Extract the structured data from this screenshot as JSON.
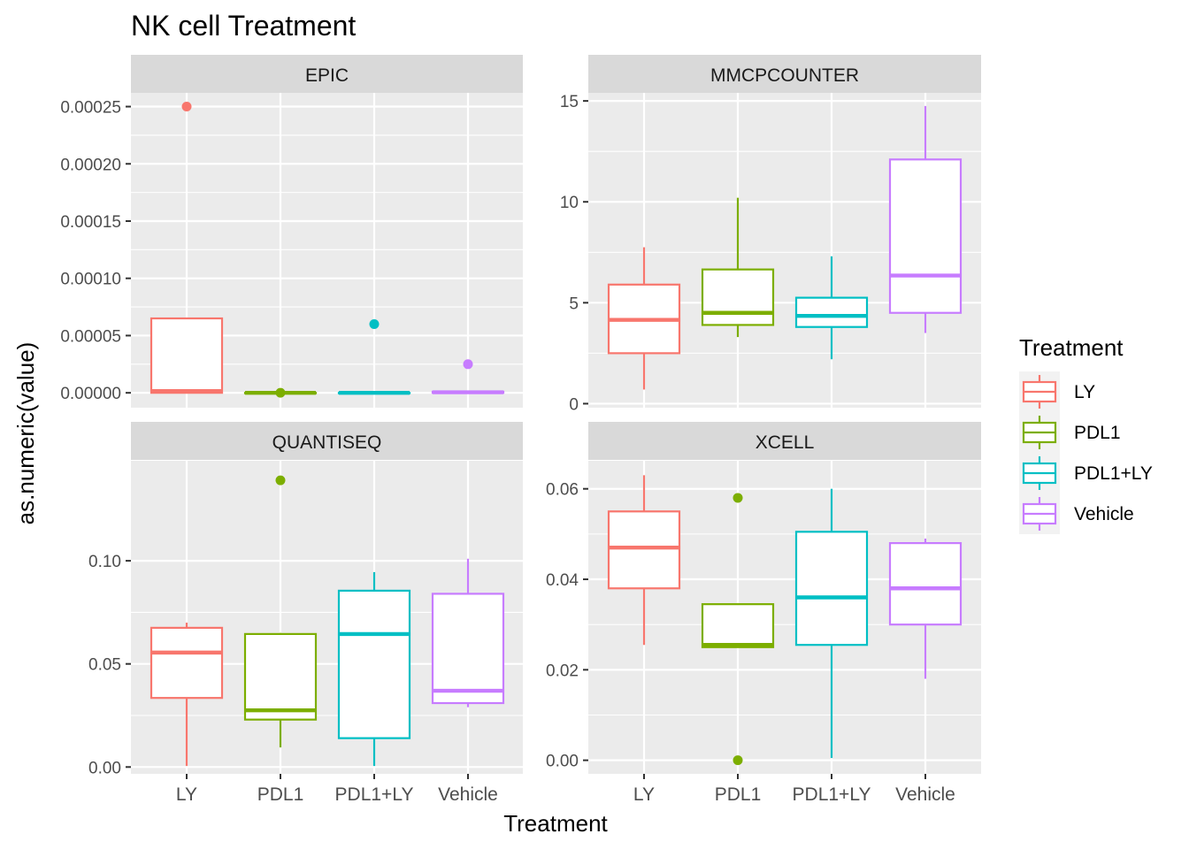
{
  "colors": {
    "panel_bg": "#EBEBEB",
    "grid": "#FFFFFF",
    "strip_bg": "#D9D9D9",
    "text": "#1A1A1A",
    "tick_text": "#4D4D4D"
  },
  "chart_data": {
    "type": "boxplot",
    "title": "NK cell Treatment",
    "xlabel": "Treatment",
    "ylabel": "as.numeric(value)",
    "categories": [
      "LY",
      "PDL1",
      "PDL1+LY",
      "Vehicle"
    ],
    "legend": {
      "title": "Treatment",
      "position": "right",
      "entries": [
        {
          "label": "LY",
          "color": "#F8766D"
        },
        {
          "label": "PDL1",
          "color": "#7CAE00"
        },
        {
          "label": "PDL1+LY",
          "color": "#00BFC4"
        },
        {
          "label": "Vehicle",
          "color": "#C77CFF"
        }
      ]
    },
    "facets": [
      {
        "name": "EPIC",
        "ylim": [
          -1.3e-05,
          0.000262
        ],
        "yticks": [
          0,
          5e-05,
          0.0001,
          0.00015,
          0.0002,
          0.00025
        ],
        "ytick_labels": [
          "0.00000",
          "0.00005",
          "0.00010",
          "0.00015",
          "0.00020",
          "0.00025"
        ],
        "boxes": [
          {
            "category": "LY",
            "min": 0,
            "q1": 0,
            "median": 1.5e-06,
            "q3": 6.5e-05,
            "max": 6.5e-05,
            "outliers": [
              0.00025
            ]
          },
          {
            "category": "PDL1",
            "min": 0,
            "q1": 0,
            "median": 0,
            "q3": 0,
            "max": 0,
            "outliers": [
              0
            ]
          },
          {
            "category": "PDL1+LY",
            "min": 0,
            "q1": 0,
            "median": 0,
            "q3": 0,
            "max": 0,
            "outliers": [
              6e-05
            ]
          },
          {
            "category": "Vehicle",
            "min": 0,
            "q1": 0,
            "median": 5e-07,
            "q3": 1e-06,
            "max": 1e-06,
            "outliers": [
              2.5e-05
            ]
          }
        ]
      },
      {
        "name": "MMCPCOUNTER",
        "ylim": [
          -0.2,
          15.4
        ],
        "yticks": [
          0,
          5,
          10,
          15
        ],
        "ytick_labels": [
          "0",
          "5",
          "10",
          "15"
        ],
        "boxes": [
          {
            "category": "LY",
            "min": 0.7,
            "q1": 2.5,
            "median": 4.15,
            "q3": 5.9,
            "max": 7.75,
            "outliers": []
          },
          {
            "category": "PDL1",
            "min": 3.3,
            "q1": 3.9,
            "median": 4.5,
            "q3": 6.65,
            "max": 10.2,
            "outliers": []
          },
          {
            "category": "PDL1+LY",
            "min": 2.2,
            "q1": 3.8,
            "median": 4.35,
            "q3": 5.25,
            "max": 7.3,
            "outliers": []
          },
          {
            "category": "Vehicle",
            "min": 3.5,
            "q1": 4.5,
            "median": 6.35,
            "q3": 12.1,
            "max": 14.75,
            "outliers": []
          }
        ]
      },
      {
        "name": "QUANTISEQ",
        "ylim": [
          -0.0033,
          0.1485
        ],
        "yticks": [
          0,
          0.05,
          0.1
        ],
        "ytick_labels": [
          "0.00",
          "0.05",
          "0.10"
        ],
        "boxes": [
          {
            "category": "LY",
            "min": 0.0005,
            "q1": 0.0335,
            "median": 0.0555,
            "q3": 0.0675,
            "max": 0.07,
            "outliers": []
          },
          {
            "category": "PDL1",
            "min": 0.0095,
            "q1": 0.023,
            "median": 0.0275,
            "q3": 0.0645,
            "max": 0.065,
            "outliers": [
              0.139
            ]
          },
          {
            "category": "PDL1+LY",
            "min": 0.0005,
            "q1": 0.014,
            "median": 0.0645,
            "q3": 0.0855,
            "max": 0.0945,
            "outliers": []
          },
          {
            "category": "Vehicle",
            "min": 0.029,
            "q1": 0.031,
            "median": 0.037,
            "q3": 0.084,
            "max": 0.101,
            "outliers": []
          }
        ]
      },
      {
        "name": "XCELL",
        "ylim": [
          -0.003,
          0.0662
        ],
        "yticks": [
          0,
          0.02,
          0.04,
          0.06
        ],
        "ytick_labels": [
          "0.00",
          "0.02",
          "0.04",
          "0.06"
        ],
        "boxes": [
          {
            "category": "LY",
            "min": 0.0255,
            "q1": 0.038,
            "median": 0.047,
            "q3": 0.055,
            "max": 0.063,
            "outliers": []
          },
          {
            "category": "PDL1",
            "min": 0.025,
            "q1": 0.025,
            "median": 0.0255,
            "q3": 0.0345,
            "max": 0.0345,
            "outliers": [
              0.058,
              0
            ]
          },
          {
            "category": "PDL1+LY",
            "min": 0.0005,
            "q1": 0.0255,
            "median": 0.036,
            "q3": 0.0505,
            "max": 0.06,
            "outliers": []
          },
          {
            "category": "Vehicle",
            "min": 0.018,
            "q1": 0.03,
            "median": 0.038,
            "q3": 0.048,
            "max": 0.049,
            "outliers": []
          }
        ]
      }
    ]
  }
}
